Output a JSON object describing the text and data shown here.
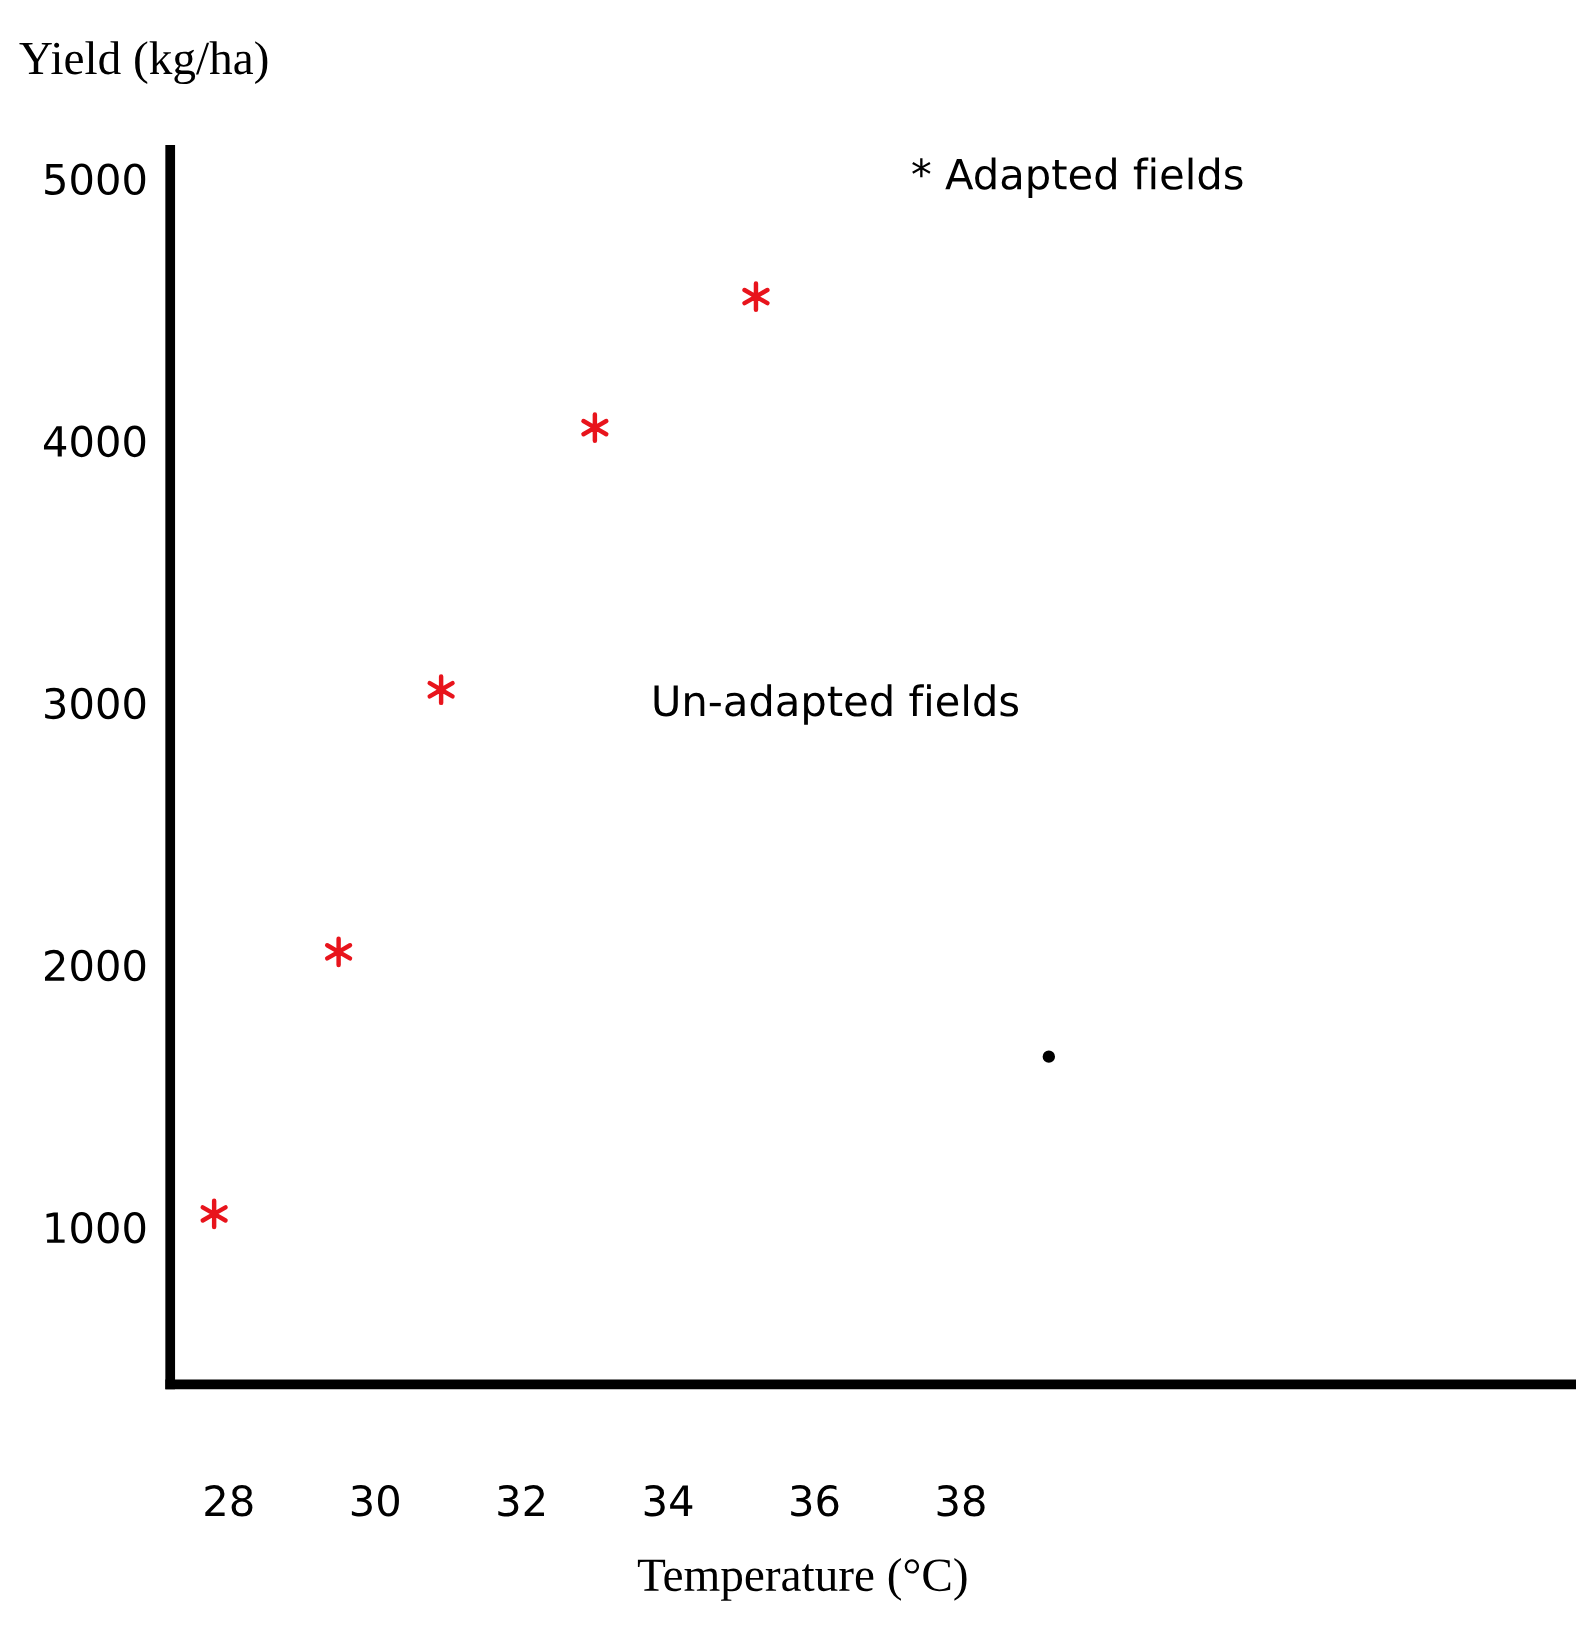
{
  "chart_data": {
    "type": "scatter",
    "ylabel": "Yield (kg/ha)",
    "xlabel": "Temperature (°C)",
    "series": [
      {
        "color": "#e8141c",
        "marker": "cross",
        "x": [
          27.8,
          29.5,
          30.9,
          33.0,
          35.2
        ],
        "values": [
          1050,
          2050,
          3050,
          4050,
          4550
        ]
      },
      {
        "color": "#000000",
        "marker": "circle",
        "x": [
          39.2
        ],
        "values": [
          1650
        ]
      }
    ],
    "xlim": [
      27.2,
      46.4
    ],
    "ylim": [
      400,
      5110
    ],
    "xticks": [
      28,
      30,
      32,
      34,
      36,
      38
    ],
    "yticks": [
      1000,
      2000,
      3000,
      4000,
      5000
    ],
    "annotations": [
      "* Adapted fields",
      "Un-adapted fields"
    ],
    "grid": false
  }
}
